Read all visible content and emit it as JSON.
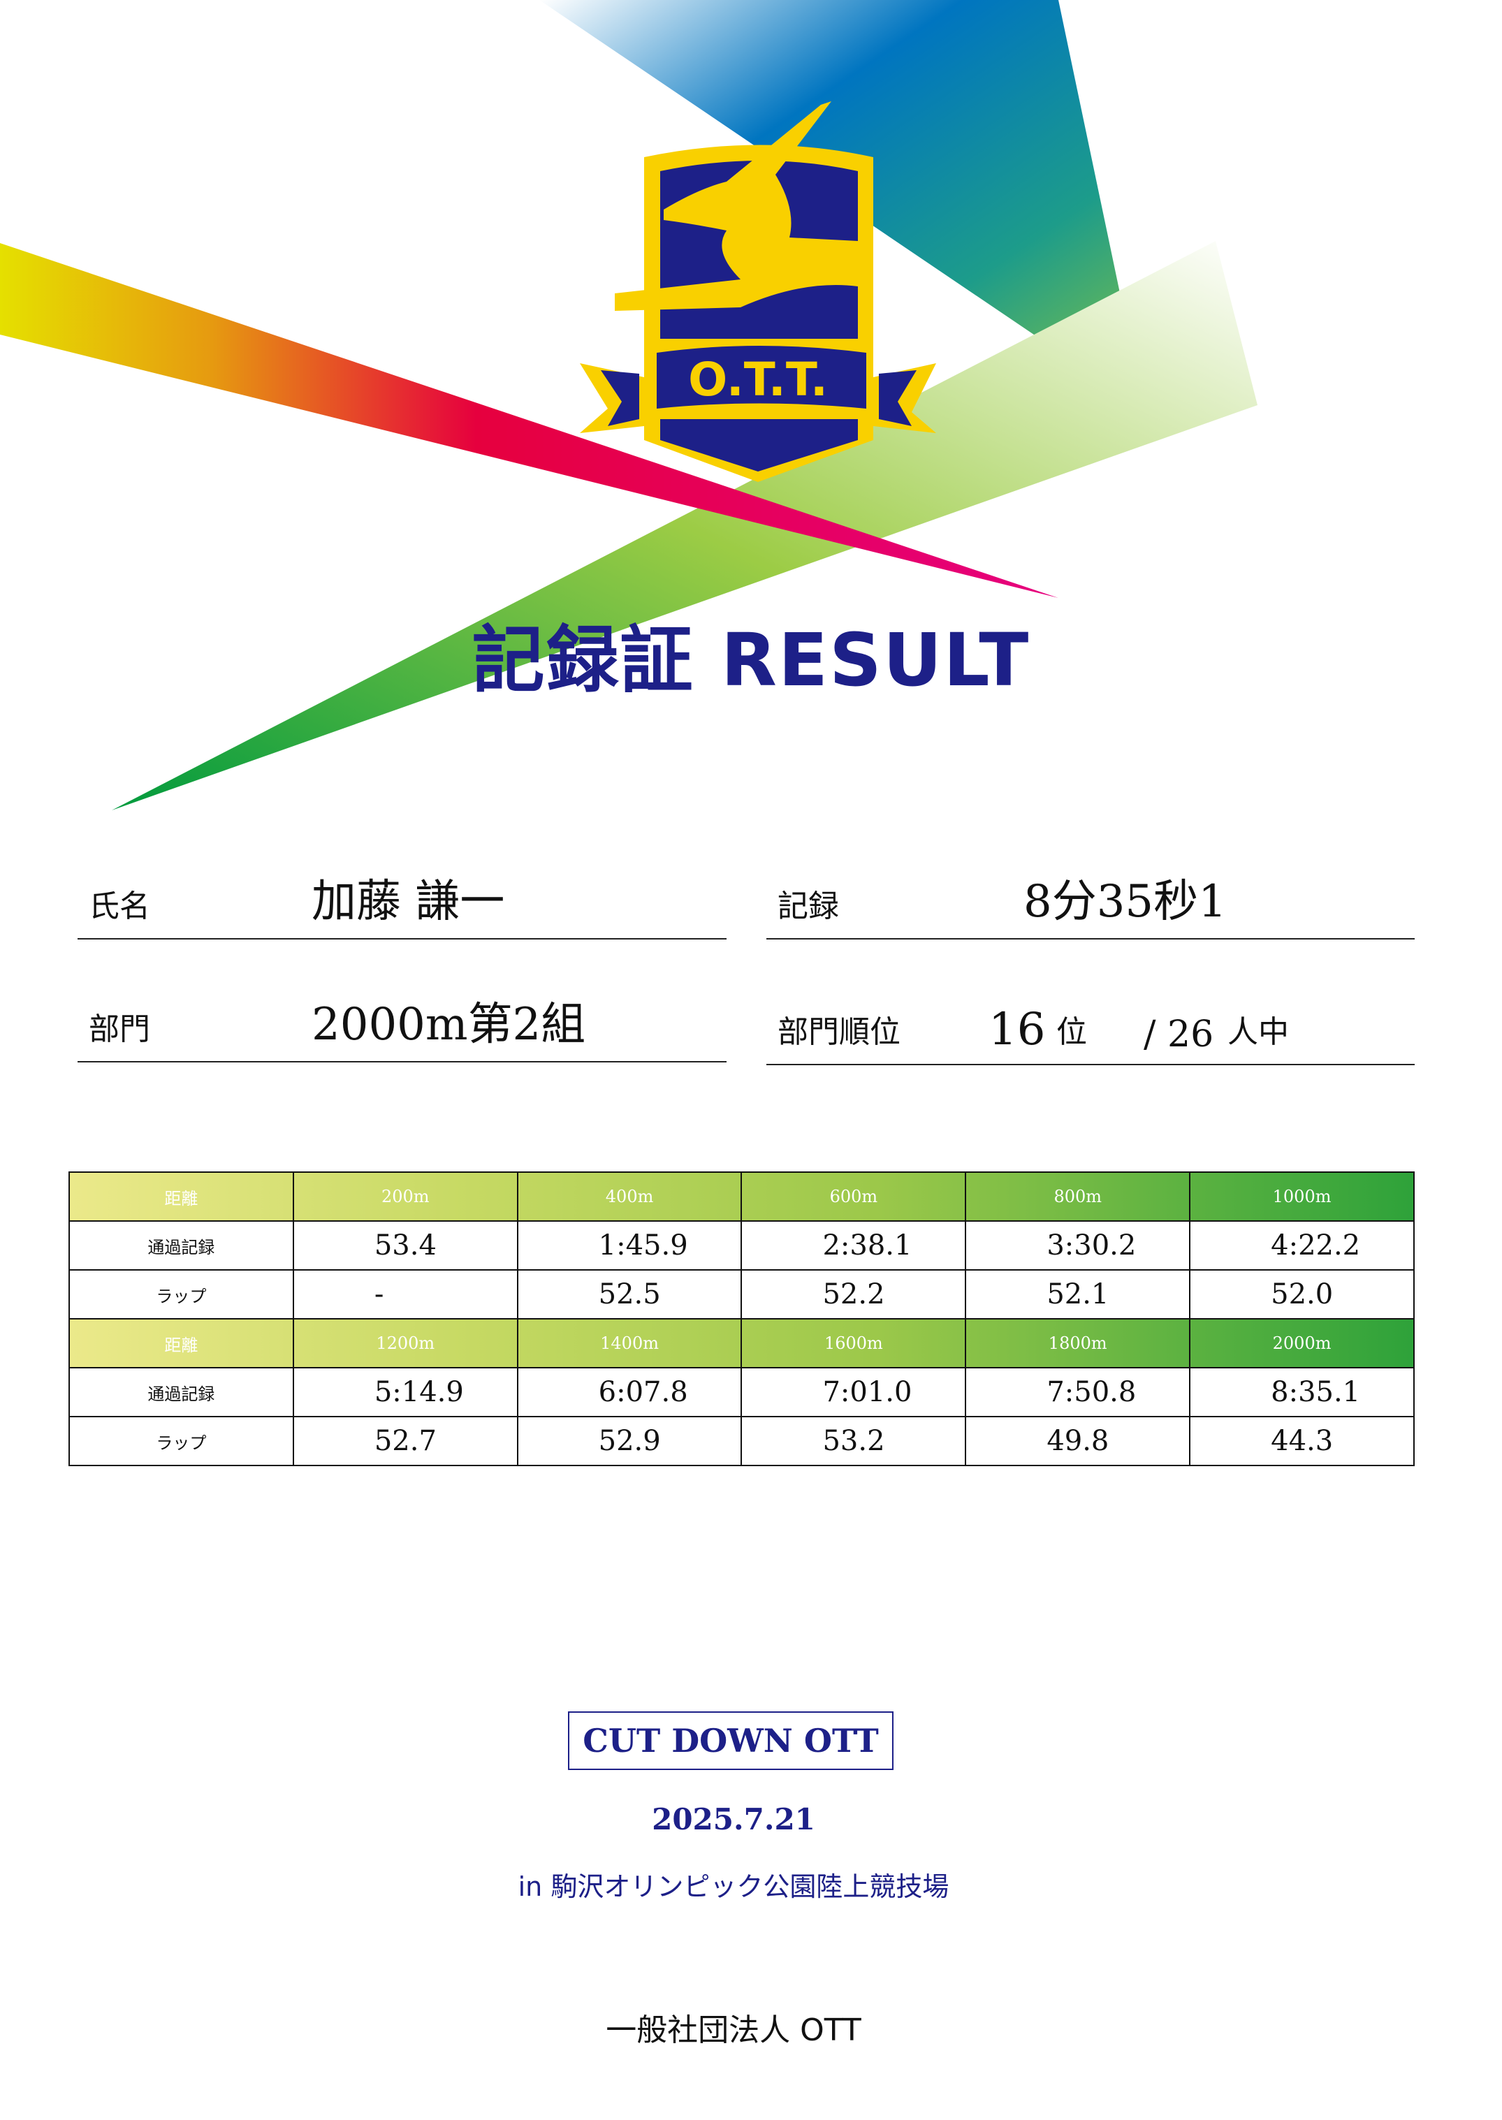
{
  "logo": {
    "text": "O.T.T.",
    "colors": {
      "navy": "#1d2088",
      "gold": "#f9d000"
    }
  },
  "title": "記録証 RESULT",
  "info": {
    "name_label": "氏名",
    "name_value": "加藤 謙一",
    "record_label": "記録",
    "record_value": "8分35秒1",
    "division_label": "部門",
    "division_value": "2000m第2組",
    "rank_label": "部門順位",
    "rank_value": "16",
    "rank_unit": "位",
    "total_value": "/ 26",
    "total_unit": "人中"
  },
  "splits": {
    "distance_label": "距離",
    "passing_label": "通過記録",
    "lap_label": "ラップ",
    "blocks": [
      {
        "distances": [
          "200m",
          "400m",
          "600m",
          "800m",
          "1000m"
        ],
        "passing": [
          "53.4",
          "1:45.9",
          "2:38.1",
          "3:30.2",
          "4:22.2"
        ],
        "laps": [
          "-",
          "52.5",
          "52.2",
          "52.1",
          "52.0"
        ]
      },
      {
        "distances": [
          "1200m",
          "1400m",
          "1600m",
          "1800m",
          "2000m"
        ],
        "passing": [
          "5:14.9",
          "6:07.8",
          "7:01.0",
          "7:50.8",
          "8:35.1"
        ],
        "laps": [
          "52.7",
          "52.9",
          "53.2",
          "49.8",
          "44.3"
        ]
      }
    ]
  },
  "event": {
    "name": "CUT DOWN OTT",
    "date": "2025.7.21",
    "venue": "in 駒沢オリンピック公園陸上競技場"
  },
  "organizer": "一般社団法人 OTT"
}
